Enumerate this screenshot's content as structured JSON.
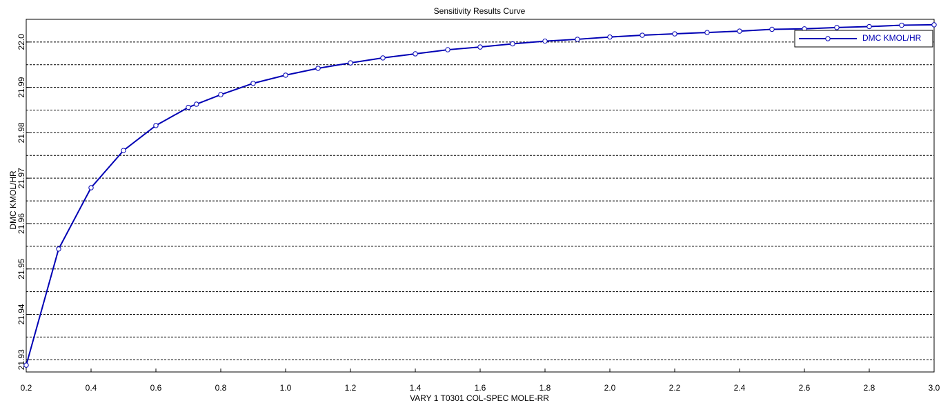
{
  "chart_data": {
    "type": "line",
    "title": "Sensitivity Results Curve",
    "x_label": "VARY   1 T0301 COL-SPEC MOLE-RR",
    "y_label": "DMC KMOL/HR",
    "x": [
      0.2,
      0.3,
      0.4,
      0.5,
      0.6,
      0.7,
      0.725,
      0.8,
      0.9,
      1.0,
      1.1,
      1.2,
      1.3,
      1.4,
      1.5,
      1.6,
      1.7,
      1.8,
      1.9,
      2.0,
      2.1,
      2.2,
      2.3,
      2.4,
      2.5,
      2.6,
      2.7,
      2.8,
      2.9,
      3.0
    ],
    "series": [
      {
        "name": "DMC KMOL/HR",
        "color": "#0000b4",
        "values": [
          21.9288,
          21.9544,
          21.9679,
          21.9761,
          21.9816,
          21.9856,
          21.9863,
          21.9884,
          21.9909,
          21.9927,
          21.9942,
          21.9954,
          21.9965,
          21.9974,
          21.9983,
          21.9989,
          21.9996,
          22.0002,
          22.0006,
          22.0011,
          22.0015,
          22.0018,
          22.0021,
          22.0024,
          22.0028,
          22.0029,
          22.0032,
          22.0034,
          22.0037,
          22.0038
        ]
      }
    ],
    "xlim": [
      0.2,
      3.0
    ],
    "xticks": [
      0.2,
      0.4,
      0.6,
      0.8,
      {
        "value": 1,
        "label": "1.0"
      },
      1.2,
      1.4,
      1.6,
      1.8,
      {
        "value": 2,
        "label": "2.0"
      },
      2.2,
      2.4,
      2.6,
      2.8,
      {
        "value": 3,
        "label": "3.0"
      }
    ],
    "ylim": [
      21.9273,
      22.005
    ],
    "yticks": [
      21.93,
      21.94,
      21.95,
      21.96,
      21.97,
      21.98,
      21.99,
      {
        "value": 22,
        "label": "22.0"
      }
    ],
    "grid": true,
    "legend": "upper right"
  }
}
